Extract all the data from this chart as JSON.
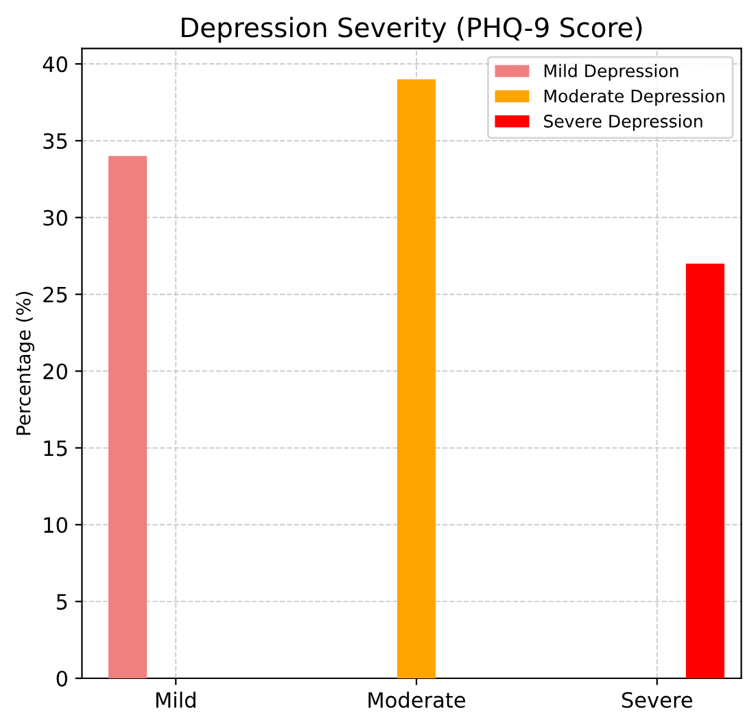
{
  "chart_data": {
    "type": "bar",
    "title": "Depression Severity (PHQ-9 Score)",
    "ylabel": "Percentage (%)",
    "categories": [
      "Mild",
      "Moderate",
      "Severe"
    ],
    "series": [
      {
        "name": "Mild Depression",
        "color": "#f08080",
        "values": [
          34,
          null,
          null
        ]
      },
      {
        "name": "Moderate Depression",
        "color": "#ffa500",
        "values": [
          null,
          39,
          null
        ]
      },
      {
        "name": "Severe Depression",
        "color": "#ff0000",
        "values": [
          null,
          null,
          27
        ]
      }
    ],
    "ylim": [
      0,
      41
    ],
    "yticks": [
      0,
      5,
      10,
      15,
      20,
      25,
      30,
      35,
      40
    ],
    "grid": true,
    "legend": "top right"
  }
}
